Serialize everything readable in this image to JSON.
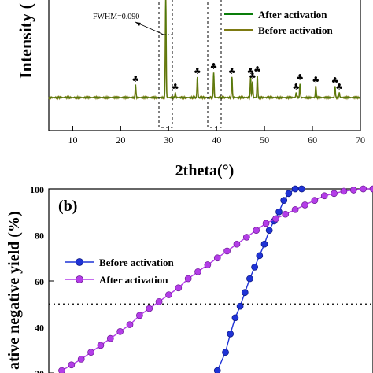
{
  "chart_data": [
    {
      "type": "line",
      "panel": "a",
      "xlabel": "2theta(°)",
      "ylabel": "Intensity (",
      "xlim": [
        5,
        70
      ],
      "xticks": [
        10,
        20,
        30,
        40,
        50,
        60,
        70
      ],
      "legend_position": "top-right",
      "series": [
        {
          "name": "After activation",
          "color": "#0a7d0a"
        },
        {
          "name": "Before activation",
          "color": "#7d7a12"
        }
      ],
      "peaks": [
        {
          "x": 23.1,
          "h": 0.16
        },
        {
          "x": 29.4,
          "h": 1.3
        },
        {
          "x": 31.4,
          "h": 0.06
        },
        {
          "x": 36.0,
          "h": 0.26
        },
        {
          "x": 39.4,
          "h": 0.32
        },
        {
          "x": 43.2,
          "h": 0.26
        },
        {
          "x": 47.1,
          "h": 0.26
        },
        {
          "x": 47.5,
          "h": 0.2
        },
        {
          "x": 48.5,
          "h": 0.28
        },
        {
          "x": 56.6,
          "h": 0.06
        },
        {
          "x": 57.4,
          "h": 0.18
        },
        {
          "x": 60.7,
          "h": 0.15
        },
        {
          "x": 64.7,
          "h": 0.14
        },
        {
          "x": 65.6,
          "h": 0.06
        }
      ],
      "annotation": "FWHM=0.090",
      "marker_symbol": "♣"
    },
    {
      "type": "line",
      "panel": "b",
      "panel_label": "(b)",
      "ylabel": "ative negative yield (%)",
      "ylim": [
        20,
        100
      ],
      "yticks": [
        20,
        40,
        60,
        80,
        100
      ],
      "reference_line": 50,
      "legend_position": "middle-left",
      "series": [
        {
          "name": "Before activation",
          "color": "#1f33d6",
          "marker": "sphere",
          "x": [
            0.52,
            0.545,
            0.56,
            0.575,
            0.59,
            0.605,
            0.62,
            0.635,
            0.65,
            0.665,
            0.68,
            0.695,
            0.71,
            0.725,
            0.74,
            0.76,
            0.78
          ],
          "y": [
            21,
            29,
            37,
            44,
            49,
            55,
            61,
            66,
            71,
            76,
            82,
            86,
            90,
            95,
            98,
            100,
            100
          ]
        },
        {
          "name": "After activation",
          "color": "#b43de8",
          "marker": "sphere",
          "x": [
            0.04,
            0.07,
            0.1,
            0.13,
            0.16,
            0.19,
            0.22,
            0.25,
            0.28,
            0.31,
            0.34,
            0.37,
            0.4,
            0.43,
            0.46,
            0.49,
            0.52,
            0.55,
            0.58,
            0.61,
            0.64,
            0.67,
            0.7,
            0.73,
            0.76,
            0.79,
            0.82,
            0.85,
            0.88,
            0.91,
            0.94,
            0.97,
            1.0
          ],
          "y": [
            21,
            23.5,
            26,
            29,
            32,
            35,
            38,
            41,
            45,
            48,
            51,
            54,
            57,
            61,
            64,
            67,
            70,
            73,
            76,
            79,
            82,
            85,
            87,
            89,
            91,
            93,
            95,
            97,
            98,
            99,
            99.5,
            100,
            100
          ]
        }
      ]
    }
  ]
}
